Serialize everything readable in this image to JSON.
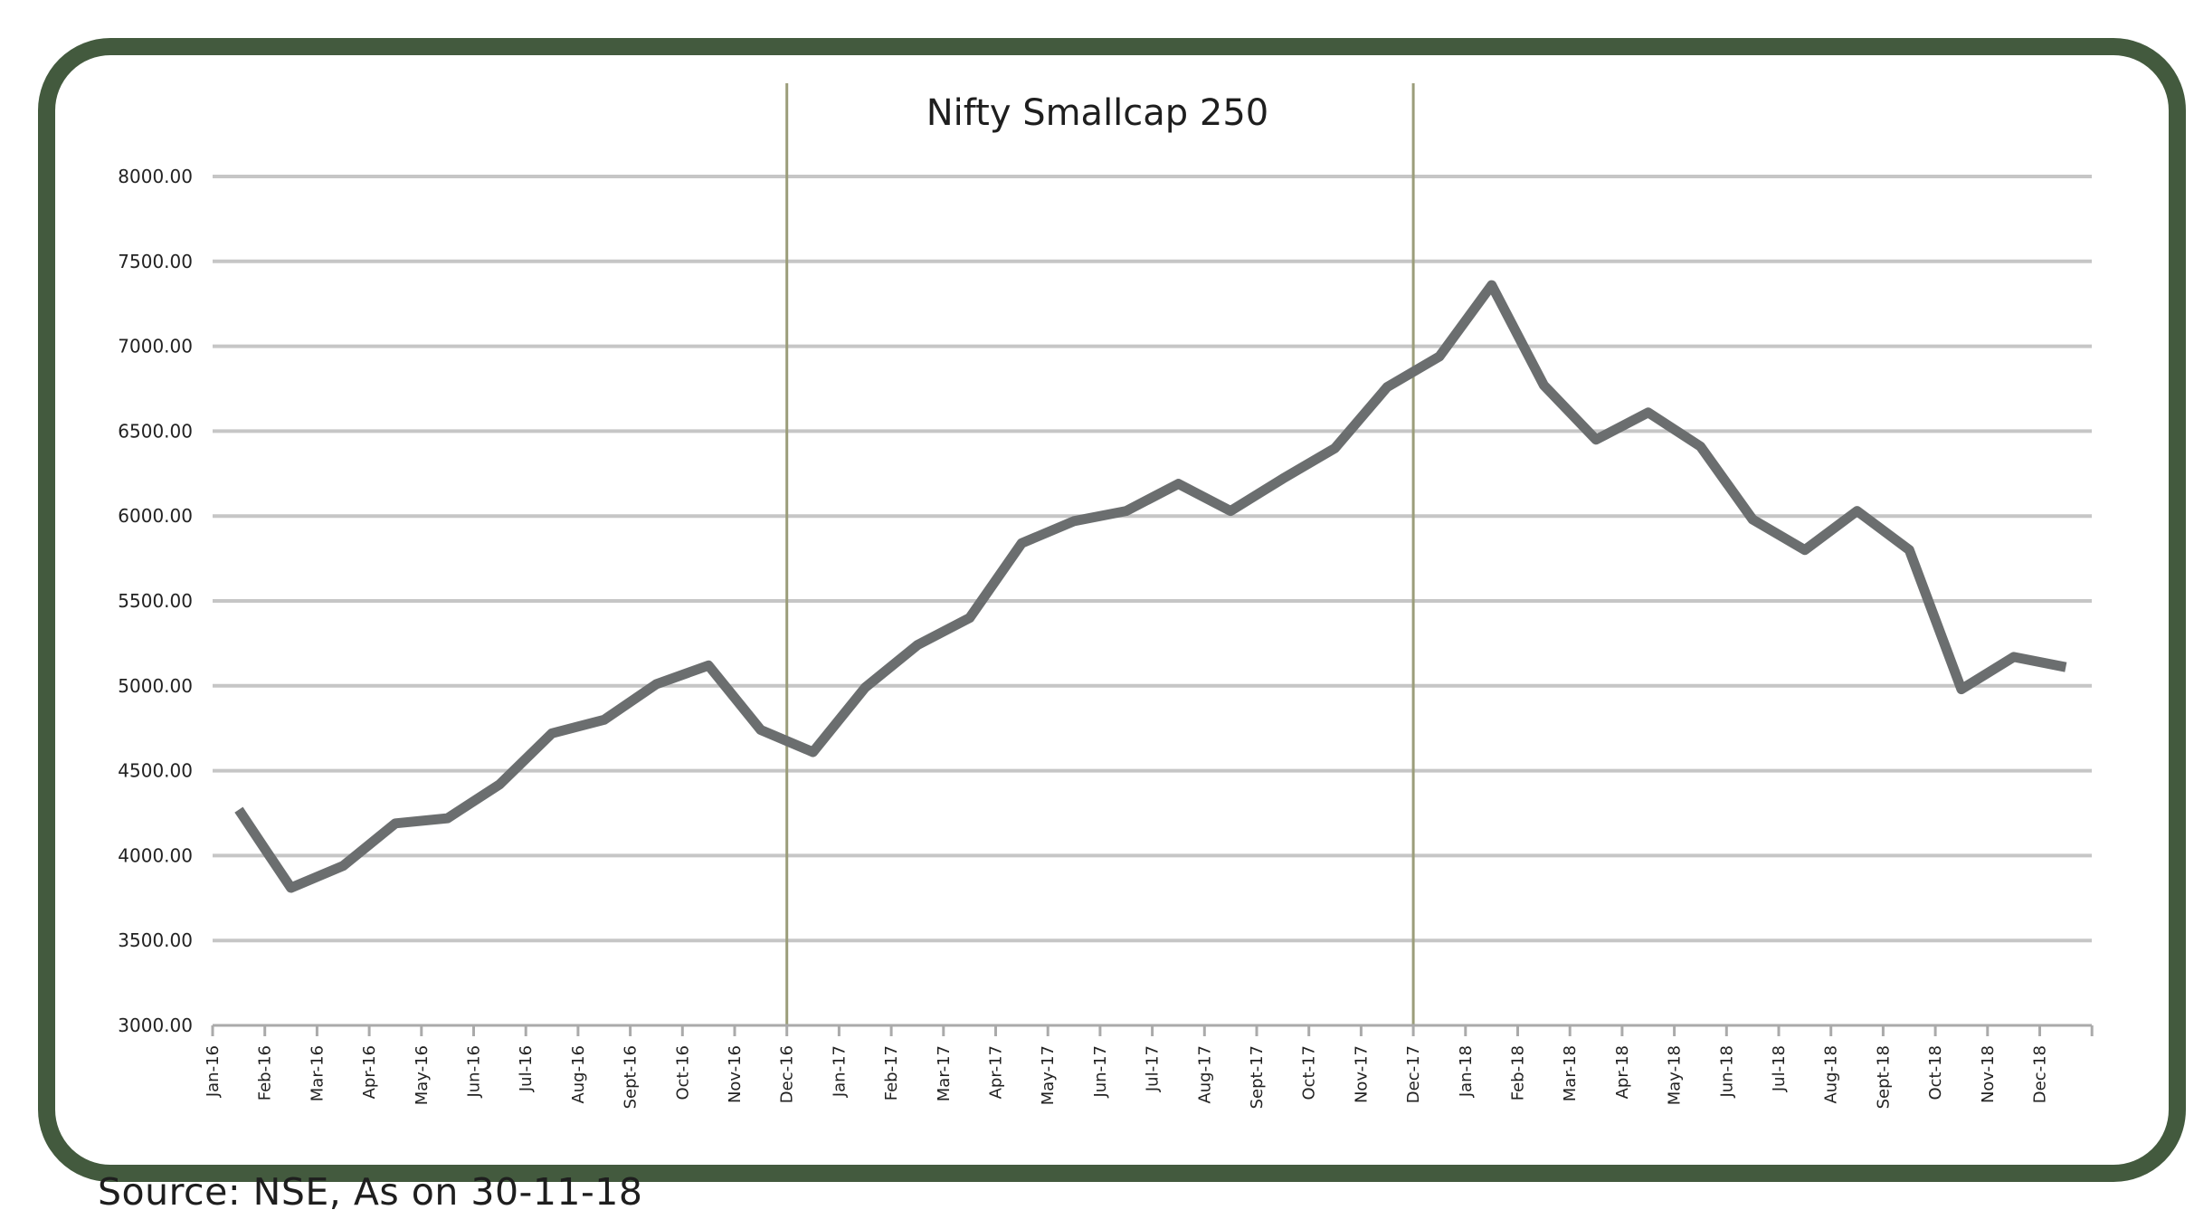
{
  "colors": {
    "frame": "#435a3e",
    "line": "#6b6e6f",
    "grid": "#c6c6c6",
    "divider": "#9b9d7a",
    "axis": "#aaaaaa"
  },
  "source_note": "Source: NSE, As on 30-11-18",
  "chart_data": {
    "type": "line",
    "title": "Nifty Smallcap 250",
    "xlabel": "",
    "ylabel": "",
    "ylim": [
      3000,
      8000
    ],
    "grid": true,
    "legend": "none",
    "y_ticks": [
      "3000.00",
      "3500.00",
      "4000.00",
      "4500.00",
      "5000.00",
      "5500.00",
      "6000.00",
      "6500.00",
      "7000.00",
      "7500.00",
      "8000.00"
    ],
    "categories": [
      "Jan-16",
      "Feb-16",
      "Mar-16",
      "Apr-16",
      "May-16",
      "Jun-16",
      "Jul-16",
      "Aug-16",
      "Sept-16",
      "Oct-16",
      "Nov-16",
      "Dec-16",
      "Jan-17",
      "Feb-17",
      "Mar-17",
      "Apr-17",
      "May-17",
      "Jun-17",
      "Jul-17",
      "Aug-17",
      "Sept-17",
      "Oct-17",
      "Nov-17",
      "Dec-17",
      "Jan-18",
      "Feb-18",
      "Mar-18",
      "Apr-18",
      "May-18",
      "Jun-18",
      "Jul-18",
      "Aug-18",
      "Sept-18",
      "Oct-18",
      "Nov-18",
      "Dec-18"
    ],
    "dividers_after": [
      "Nov-16",
      "Nov-17"
    ],
    "series": [
      {
        "name": "",
        "points": [
          [
            0.5,
            4270
          ],
          [
            1.0,
            4040
          ],
          [
            1.5,
            3810
          ],
          [
            2.5,
            3940
          ],
          [
            3.5,
            4190
          ],
          [
            4.5,
            4220
          ],
          [
            5.5,
            4420
          ],
          [
            6.5,
            4720
          ],
          [
            7.5,
            4800
          ],
          [
            8.5,
            5010
          ],
          [
            9.5,
            5120
          ],
          [
            10.5,
            4740
          ],
          [
            11.5,
            4610
          ],
          [
            12.5,
            4990
          ],
          [
            13.5,
            5240
          ],
          [
            14.5,
            5400
          ],
          [
            15.5,
            5840
          ],
          [
            16.5,
            5970
          ],
          [
            17.5,
            6030
          ],
          [
            18.5,
            6190
          ],
          [
            19.5,
            6030
          ],
          [
            20.5,
            6220
          ],
          [
            21.5,
            6400
          ],
          [
            22.5,
            6760
          ],
          [
            23.5,
            6940
          ],
          [
            24.5,
            7360
          ],
          [
            25.5,
            6770
          ],
          [
            26.5,
            6450
          ],
          [
            27.5,
            6610
          ],
          [
            28.5,
            6410
          ],
          [
            29.5,
            5980
          ],
          [
            30.5,
            5800
          ],
          [
            31.5,
            6030
          ],
          [
            32.5,
            5800
          ],
          [
            33.5,
            4980
          ],
          [
            34.5,
            5170
          ],
          [
            35.5,
            5110
          ]
        ]
      }
    ]
  }
}
